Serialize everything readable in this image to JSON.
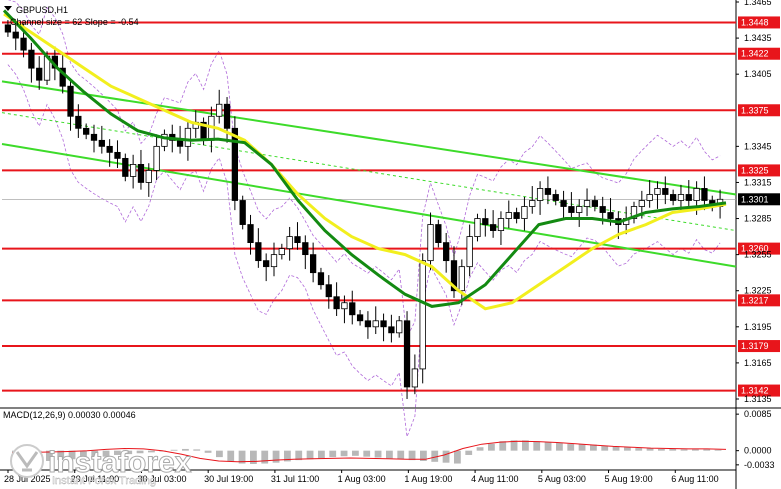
{
  "header": {
    "symbol": "GBPUSD,H1",
    "channel_note": "Channel size = 62 Slope = -0.54"
  },
  "macd": {
    "label": "MACD(12,26,9) 0.00030 0.00046"
  },
  "watermark": {
    "brand": "instaforex",
    "tagline": "Instant Forex Trading"
  },
  "colors": {
    "level_line": "#e8151b",
    "channel_line": "#3ddb2a",
    "ma_yellow": "#f2ef1e",
    "ma_green": "#138a12",
    "bollinger": "#b06ad9",
    "current_price_box": "#000000"
  },
  "chart_data": {
    "type": "candlestick",
    "symbol": "GBPUSD",
    "timeframe": "H1",
    "ylim": [
      1.313,
      1.3465
    ],
    "price_ticks": [
      1.3465,
      1.3435,
      1.3405,
      1.3345,
      1.3315,
      1.3285,
      1.3255,
      1.3225,
      1.3195,
      1.3165,
      1.3135
    ],
    "time_labels": [
      "28 Jul 2025",
      "29 Jul 11:00",
      "30 Jul 03:00",
      "30 Jul 19:00",
      "31 Jul 11:00",
      "1 Aug 03:00",
      "1 Aug 19:00",
      "4 Aug 11:00",
      "5 Aug 03:00",
      "5 Aug 19:00",
      "6 Aug 11:00"
    ],
    "levels": [
      {
        "label": "1.3448",
        "value": 1.3448
      },
      {
        "label": "1.3422",
        "value": 1.3422
      },
      {
        "label": "1.3375",
        "value": 1.3375
      },
      {
        "label": "1.3325",
        "value": 1.3325
      },
      {
        "label": "1.3260",
        "value": 1.326
      },
      {
        "label": "1.3217",
        "value": 1.3217
      },
      {
        "label": "1.3179",
        "value": 1.3179
      },
      {
        "label": "1.3142",
        "value": 1.3142
      }
    ],
    "current_price": {
      "label": "1.3301",
      "value": 1.3301
    },
    "price_path": [
      1.344,
      1.3435,
      1.3425,
      1.341,
      1.34,
      1.342,
      1.341,
      1.3395,
      1.337,
      1.336,
      1.3355,
      1.335,
      1.3345,
      1.334,
      1.3335,
      1.332,
      1.333,
      1.3315,
      1.3325,
      1.3345,
      1.3355,
      1.335,
      1.3345,
      1.336,
      1.3365,
      1.335,
      1.337,
      1.338,
      1.336,
      1.33,
      1.328,
      1.3265,
      1.325,
      1.3245,
      1.3255,
      1.326,
      1.327,
      1.3265,
      1.3255,
      1.324,
      1.323,
      1.322,
      1.321,
      1.3215,
      1.3205,
      1.32,
      1.3195,
      1.32,
      1.3195,
      1.319,
      1.32,
      1.3145,
      1.316,
      1.325,
      1.328,
      1.3265,
      1.325,
      1.3225,
      1.3245,
      1.327,
      1.3285,
      1.328,
      1.3275,
      1.3285,
      1.329,
      1.3285,
      1.3295,
      1.33,
      1.331,
      1.3305,
      1.33,
      1.3295,
      1.329,
      1.3295,
      1.33,
      1.3295,
      1.329,
      1.3285,
      1.328,
      1.3285,
      1.3295,
      1.33,
      1.3305,
      1.331,
      1.3305,
      1.33,
      1.3305,
      1.33,
      1.331,
      1.33,
      1.3295,
      1.3301
    ],
    "ma_yellow_path": [
      1.3455,
      1.344,
      1.3425,
      1.341,
      1.3395,
      1.3385,
      1.3375,
      1.3365,
      1.336,
      1.335,
      1.333,
      1.3305,
      1.3285,
      1.327,
      1.326,
      1.3255,
      1.3245,
      1.3225,
      1.321,
      1.3215,
      1.323,
      1.3245,
      1.326,
      1.3272,
      1.328,
      1.329,
      1.3293,
      1.3297
    ],
    "ma_green_path": [
      1.3458,
      1.3435,
      1.341,
      1.339,
      1.3372,
      1.3358,
      1.3352,
      1.335,
      1.3351,
      1.3348,
      1.333,
      1.33,
      1.3275,
      1.3255,
      1.3238,
      1.3222,
      1.3212,
      1.3215,
      1.323,
      1.3255,
      1.328,
      1.3285,
      1.3285,
      1.3282,
      1.329,
      1.3293,
      1.3295,
      1.3298
    ],
    "channel_upper": {
      "start": 1.3399,
      "end": 1.3305
    },
    "channel_lower": {
      "start": 1.3347,
      "end": 1.3245
    },
    "channel_mid": {
      "start": 1.3373,
      "end": 1.3275
    },
    "macd_ticks": [
      0.0085,
      0.0,
      -0.0033
    ],
    "macd_ylim": [
      -0.0045,
      0.009
    ],
    "macd_histogram": [
      -0.003,
      -0.0028,
      -0.0026,
      -0.0024,
      -0.0022,
      -0.002,
      -0.0018,
      -0.0016,
      -0.0014,
      -0.001,
      -0.0008,
      -0.0006,
      -0.0004,
      -0.0002,
      0.0002,
      0.0004,
      0.0003,
      -0.0005,
      -0.0015,
      -0.0025,
      -0.003,
      -0.0031,
      -0.003,
      -0.0028,
      -0.0025,
      -0.0022,
      -0.002,
      -0.0018,
      -0.0015,
      -0.0013,
      -0.0012,
      -0.0014,
      -0.0016,
      -0.0018,
      -0.002,
      -0.0022,
      -0.0024,
      -0.0026,
      -0.0028,
      -0.003,
      -0.001,
      0.0008,
      0.0016,
      0.0022,
      0.0024,
      0.0024,
      0.0022,
      0.002,
      0.0018,
      0.0016,
      0.0015,
      0.0014,
      0.0012,
      0.001,
      0.0008,
      0.0006,
      0.0005,
      0.0004,
      0.0004,
      0.0003,
      0.0003,
      0.0003,
      0.0002
    ],
    "macd_signal": [
      -0.0005,
      -0.0004,
      -0.0003,
      -0.0002,
      0.0,
      0.0003,
      0.0005,
      0.0004,
      0.0,
      -0.0008,
      -0.0018,
      -0.0024,
      -0.0026,
      -0.0025,
      -0.0022,
      -0.002,
      -0.0019,
      -0.0018,
      -0.0017,
      -0.0018,
      -0.0019,
      -0.002,
      -0.002,
      -0.001,
      0.0005,
      0.0015,
      0.002,
      0.0022,
      0.0021,
      0.0019,
      0.0016,
      0.0013,
      0.001,
      0.0008,
      0.0006,
      0.0005,
      0.0004,
      0.0004,
      0.0003
    ]
  }
}
